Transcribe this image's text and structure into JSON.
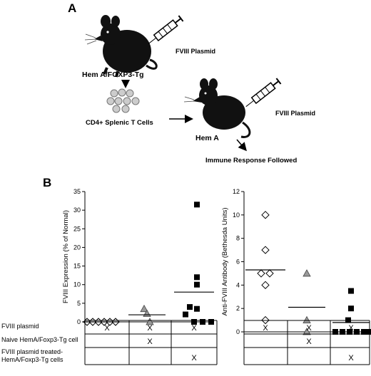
{
  "panel_a": {
    "letter": "A",
    "donor_label": "Hem A/FOXP3-Tg",
    "donor_injection": "FVIII Plasmid",
    "cells_label": "CD4+ Splenic T Cells",
    "recipient_label": "Hem A",
    "recipient_injection": "FVIII Plasmid",
    "outcome_label": "Immune Response Followed"
  },
  "panel_b": {
    "letter": "B"
  },
  "table": {
    "row_labels": [
      "FVIII plasmid",
      "Naive HemA/Foxp3-Tg cell",
      "FVIII plasmid treated-",
      "HemA/Foxp3-Tg cells"
    ],
    "mark": "X"
  },
  "chart_data": [
    {
      "type": "scatter",
      "ylabel": "FVIII Expression (% of Normal)",
      "ylim": [
        0,
        35
      ],
      "yticks": [
        0,
        5,
        10,
        15,
        20,
        25,
        30,
        35
      ],
      "groups": [
        {
          "marker": "diamond-open",
          "values": [
            0,
            0,
            0,
            0,
            0,
            0
          ],
          "mean": 0
        },
        {
          "marker": "triangle-gray",
          "values": [
            3.5,
            2.2,
            0
          ],
          "mean": 1.9
        },
        {
          "marker": "square-filled",
          "values": [
            31.5,
            12,
            10,
            4,
            3.5,
            2,
            0,
            0,
            0
          ],
          "mean": 8
        }
      ],
      "table_marks": [
        [
          true,
          true,
          true
        ],
        [
          false,
          true,
          false
        ],
        [
          false,
          false,
          true
        ]
      ]
    },
    {
      "type": "scatter",
      "ylabel": "Anti-FVIII Antibody (Bethesda Units)",
      "ylim": [
        0,
        12
      ],
      "yticks": [
        0,
        2,
        4,
        6,
        8,
        10,
        12
      ],
      "groups": [
        {
          "marker": "diamond-open",
          "values": [
            10,
            7,
            5,
            5,
            4,
            1
          ],
          "mean": 5.3
        },
        {
          "marker": "triangle-gray",
          "values": [
            5,
            1,
            0
          ],
          "mean": 2.1
        },
        {
          "marker": "square-filled",
          "values": [
            3.5,
            2,
            1,
            0,
            0,
            0,
            0,
            0,
            0
          ],
          "mean": 0.8
        }
      ],
      "table_marks": [
        [
          true,
          true,
          true
        ],
        [
          false,
          true,
          false
        ],
        [
          false,
          false,
          true
        ]
      ]
    }
  ]
}
